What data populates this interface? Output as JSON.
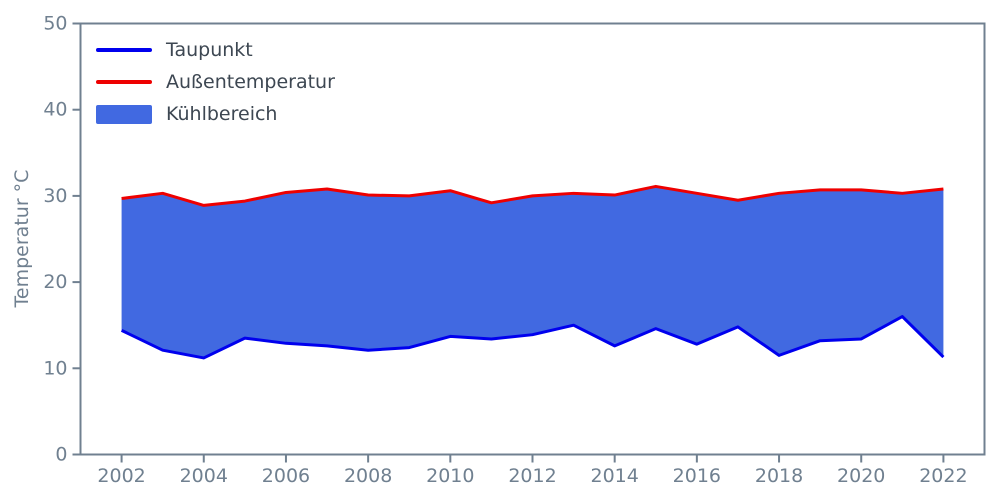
{
  "chart_data": {
    "type": "area",
    "title": "",
    "xlabel": "",
    "ylabel": "Temperatur °C",
    "x": [
      2002,
      2003,
      2004,
      2005,
      2006,
      2007,
      2008,
      2009,
      2010,
      2011,
      2012,
      2013,
      2014,
      2015,
      2016,
      2017,
      2018,
      2019,
      2020,
      2021,
      2022
    ],
    "series": [
      {
        "name": "Taupunkt",
        "type": "line",
        "color": "#0000ee",
        "values": [
          14.4,
          12.1,
          11.2,
          13.5,
          12.9,
          12.6,
          12.1,
          12.4,
          13.7,
          13.4,
          13.9,
          15.0,
          12.6,
          14.6,
          12.8,
          14.8,
          11.5,
          13.2,
          13.4,
          16.0,
          11.3
        ]
      },
      {
        "name": "Außentemperatur",
        "type": "line",
        "color": "#ee0000",
        "values": [
          29.7,
          30.3,
          28.9,
          29.4,
          30.4,
          30.8,
          30.1,
          30.0,
          30.6,
          29.2,
          30.0,
          30.3,
          30.1,
          31.1,
          30.3,
          29.5,
          30.3,
          30.7,
          30.7,
          30.3,
          30.8
        ]
      }
    ],
    "fill_between": {
      "name": "Kühlbereich",
      "color": "#4169e1",
      "lower": "Taupunkt",
      "upper": "Außentemperatur"
    },
    "xlim": [
      2001,
      2023
    ],
    "ylim": [
      0,
      50
    ],
    "xticks": [
      2002,
      2004,
      2006,
      2008,
      2010,
      2012,
      2014,
      2016,
      2018,
      2020,
      2022
    ],
    "yticks": [
      0,
      10,
      20,
      30,
      40,
      50
    ],
    "grid": false,
    "axis_color": "#708090",
    "text_color": "#3d4752",
    "legend": {
      "position": "upper-left",
      "items": [
        {
          "label": "Taupunkt",
          "swatch": "line",
          "color": "#0000ee"
        },
        {
          "label": "Außentemperatur",
          "swatch": "line",
          "color": "#ee0000"
        },
        {
          "label": "Kühlbereich",
          "swatch": "patch",
          "color": "#4169e1"
        }
      ]
    }
  }
}
